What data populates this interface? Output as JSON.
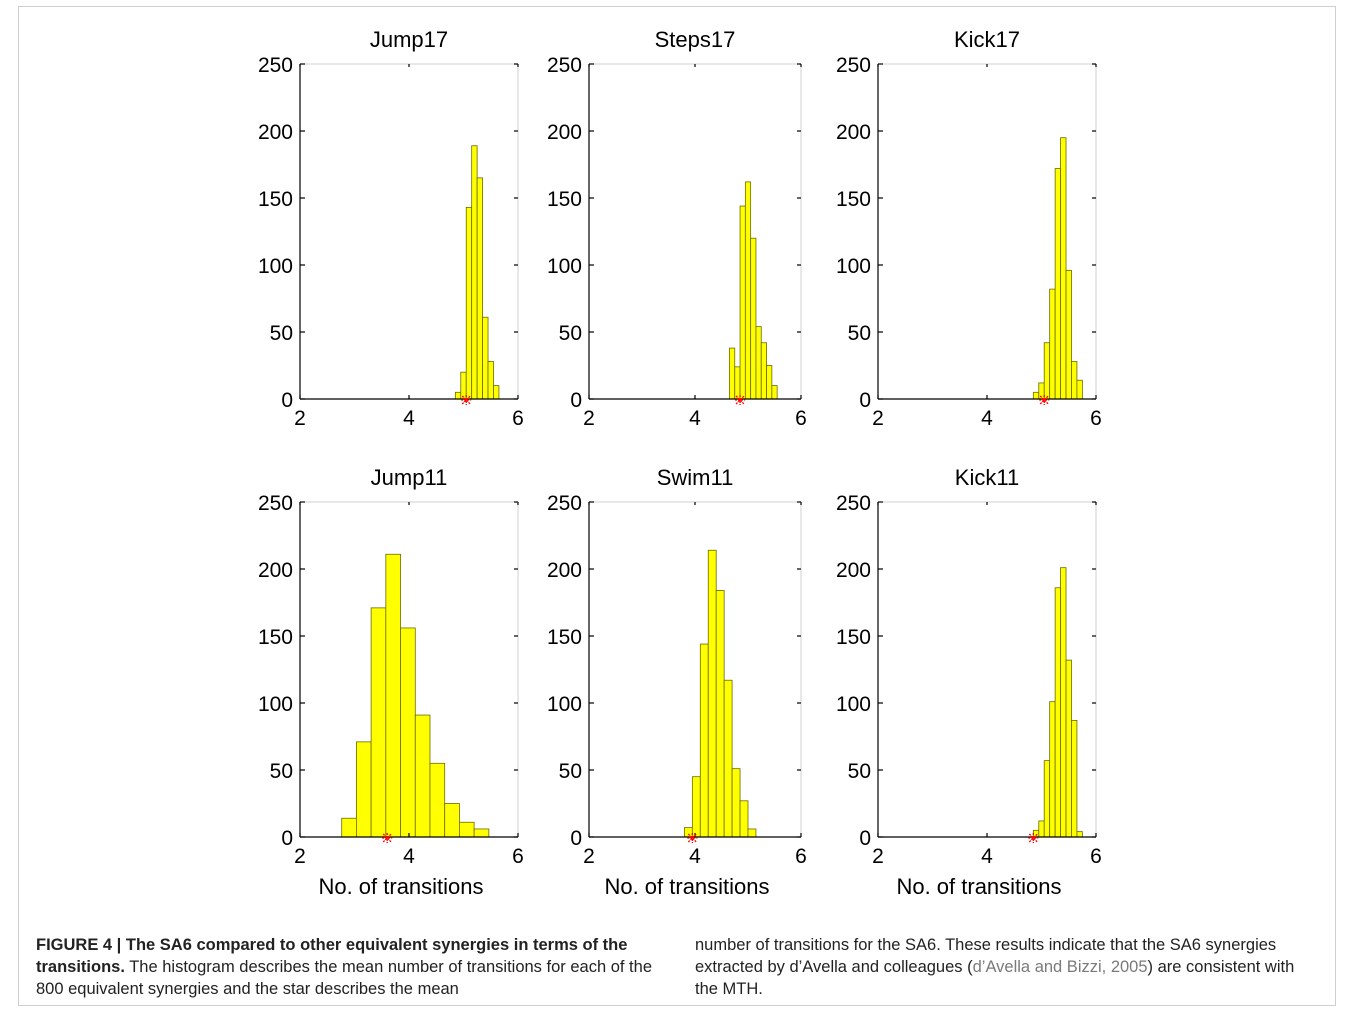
{
  "chart_data": [
    {
      "type": "bar",
      "title": "Jump17",
      "xlim": [
        2,
        6
      ],
      "ylim": [
        0,
        250
      ],
      "xticks": [
        "2",
        "4",
        "6"
      ],
      "yticks": [
        "0",
        "50",
        "100",
        "150",
        "200",
        "250"
      ],
      "bin_width": 0.1,
      "x": [
        4.9,
        5.0,
        5.1,
        5.2,
        5.3,
        5.4,
        5.5,
        5.6
      ],
      "values": [
        5,
        20,
        143,
        189,
        165,
        61,
        28,
        10
      ],
      "star_x": 5.05,
      "xlabel": ""
    },
    {
      "type": "bar",
      "title": "Steps17",
      "xlim": [
        2,
        6
      ],
      "ylim": [
        0,
        250
      ],
      "xticks": [
        "2",
        "4",
        "6"
      ],
      "yticks": [
        "0",
        "50",
        "100",
        "150",
        "200",
        "250"
      ],
      "bin_width": 0.1,
      "x": [
        4.7,
        4.8,
        4.9,
        5.0,
        5.1,
        5.2,
        5.3,
        5.4,
        5.5
      ],
      "values": [
        38,
        24,
        144,
        162,
        120,
        54,
        42,
        25,
        10
      ],
      "star_x": 4.85,
      "xlabel": ""
    },
    {
      "type": "bar",
      "title": "Kick17",
      "xlim": [
        2,
        6
      ],
      "ylim": [
        0,
        250
      ],
      "xticks": [
        "2",
        "4",
        "6"
      ],
      "yticks": [
        "0",
        "50",
        "100",
        "150",
        "200",
        "250"
      ],
      "bin_width": 0.1,
      "x": [
        4.9,
        5.0,
        5.1,
        5.2,
        5.3,
        5.4,
        5.5,
        5.6,
        5.7
      ],
      "values": [
        5,
        12,
        42,
        82,
        172,
        195,
        96,
        28,
        14
      ],
      "star_x": 5.05,
      "xlabel": ""
    },
    {
      "type": "bar",
      "title": "Jump11",
      "xlim": [
        2,
        6
      ],
      "ylim": [
        0,
        250
      ],
      "xticks": [
        "2",
        "4",
        "6"
      ],
      "yticks": [
        "0",
        "50",
        "100",
        "150",
        "200",
        "250"
      ],
      "bin_width": 0.27,
      "x": [
        2.9,
        3.17,
        3.44,
        3.71,
        3.98,
        4.25,
        4.52,
        4.79,
        5.06,
        5.33
      ],
      "values": [
        14,
        71,
        171,
        211,
        156,
        91,
        55,
        25,
        11,
        6
      ],
      "star_x": 3.6,
      "xlabel": "No. of transitions"
    },
    {
      "type": "bar",
      "title": "Swim11",
      "xlim": [
        2,
        6
      ],
      "ylim": [
        0,
        250
      ],
      "xticks": [
        "2",
        "4",
        "6"
      ],
      "yticks": [
        "0",
        "50",
        "100",
        "150",
        "200",
        "250"
      ],
      "bin_width": 0.15,
      "x": [
        3.875,
        4.025,
        4.175,
        4.325,
        4.475,
        4.625,
        4.775,
        4.925,
        5.075
      ],
      "values": [
        7,
        45,
        144,
        214,
        184,
        117,
        51,
        27,
        6
      ],
      "star_x": 3.95,
      "xlabel": "No. of transitions"
    },
    {
      "type": "bar",
      "title": "Kick11",
      "xlim": [
        2,
        6
      ],
      "ylim": [
        0,
        250
      ],
      "xticks": [
        "2",
        "4",
        "6"
      ],
      "yticks": [
        "0",
        "50",
        "100",
        "150",
        "200",
        "250"
      ],
      "bin_width": 0.1,
      "x": [
        4.9,
        5.0,
        5.1,
        5.2,
        5.3,
        5.4,
        5.5,
        5.6,
        5.7
      ],
      "values": [
        5,
        12,
        57,
        101,
        186,
        201,
        132,
        87,
        4
      ],
      "star_x": 4.85,
      "xlabel": "No. of transitions"
    }
  ],
  "colors": {
    "bar_fill": "#ffff00",
    "bar_edge": "#6b6b00",
    "star": "#ff0000",
    "axis": "#000000",
    "frame": "#cfcfcf"
  },
  "caption": {
    "label": "FIGURE 4 | The SA6 compared to other equivalent synergies in terms of the transitions.",
    "text": " The histogram describes the mean number of transitions for each of the 800 equivalent synergies and the star describes the mean number of transitions for the SA6. These results indicate that the SA6 synergies extracted by d’Avella and colleagues (",
    "reference": "d’Avella and Bizzi, 2005",
    "end": ") are consistent with the MTH."
  }
}
